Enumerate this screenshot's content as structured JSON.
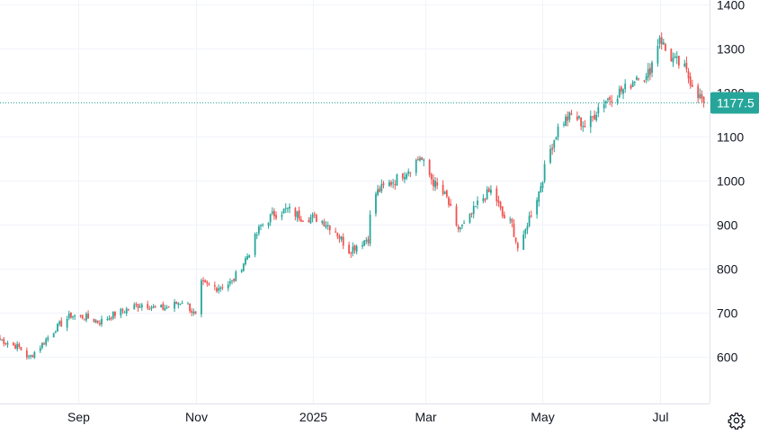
{
  "chart_data": {
    "type": "candlestick",
    "title": "",
    "xlabel": "",
    "ylabel": "",
    "ylim": [
      495,
      1410
    ],
    "y_ticks": [
      600,
      700,
      800,
      900,
      1000,
      1100,
      1200,
      1300,
      1400
    ],
    "y_tick_labels": [
      "600",
      "700",
      "800",
      "900",
      "1000",
      "1100",
      "1200",
      "1300",
      "1400"
    ],
    "x_ticks": [
      "2024-09-01",
      "2024-11-01",
      "2025-01-01",
      "2025-03-01",
      "2025-05-01",
      "2025-07-01"
    ],
    "x_tick_labels": [
      "Sep",
      "Nov",
      "2025",
      "Mar",
      "May",
      "Jul"
    ],
    "x_range": [
      "2024-07-22",
      "2025-07-27"
    ],
    "grid": true,
    "last_price": 1177.5,
    "last_price_label": "1177.5",
    "up_color": "#26a69a",
    "down_color": "#ef5350",
    "closes": [
      [
        "2024-07-22",
        640
      ],
      [
        "2024-08-01",
        622
      ],
      [
        "2024-08-06",
        598
      ],
      [
        "2024-08-12",
        625
      ],
      [
        "2024-08-20",
        665
      ],
      [
        "2024-08-28",
        695
      ],
      [
        "2024-09-05",
        690
      ],
      [
        "2024-09-12",
        680
      ],
      [
        "2024-09-20",
        698
      ],
      [
        "2024-09-28",
        712
      ],
      [
        "2024-10-05",
        722
      ],
      [
        "2024-10-12",
        708
      ],
      [
        "2024-10-19",
        715
      ],
      [
        "2024-10-26",
        730
      ],
      [
        "2024-11-01",
        692
      ],
      [
        "2024-11-04",
        765
      ],
      [
        "2024-11-12",
        758
      ],
      [
        "2024-11-20",
        770
      ],
      [
        "2024-11-28",
        830
      ],
      [
        "2024-12-05",
        898
      ],
      [
        "2024-12-12",
        925
      ],
      [
        "2024-12-19",
        935
      ],
      [
        "2024-12-26",
        918
      ],
      [
        "2025-01-04",
        915
      ],
      [
        "2025-01-12",
        892
      ],
      [
        "2025-01-20",
        842
      ],
      [
        "2025-01-26",
        860
      ],
      [
        "2025-01-30",
        870
      ],
      [
        "2025-02-01",
        965
      ],
      [
        "2025-02-07",
        985
      ],
      [
        "2025-02-14",
        1005
      ],
      [
        "2025-02-21",
        1030
      ],
      [
        "2025-02-26",
        1055
      ],
      [
        "2025-03-02",
        1020
      ],
      [
        "2025-03-06",
        990
      ],
      [
        "2025-03-12",
        960
      ],
      [
        "2025-03-17",
        890
      ],
      [
        "2025-03-22",
        900
      ],
      [
        "2025-03-29",
        955
      ],
      [
        "2025-04-05",
        980
      ],
      [
        "2025-04-10",
        920
      ],
      [
        "2025-04-15",
        900
      ],
      [
        "2025-04-19",
        830
      ],
      [
        "2025-04-23",
        905
      ],
      [
        "2025-04-29",
        975
      ],
      [
        "2025-05-04",
        1060
      ],
      [
        "2025-05-10",
        1130
      ],
      [
        "2025-05-17",
        1150
      ],
      [
        "2025-05-24",
        1120
      ],
      [
        "2025-05-31",
        1175
      ],
      [
        "2025-06-07",
        1195
      ],
      [
        "2025-06-14",
        1210
      ],
      [
        "2025-06-21",
        1250
      ],
      [
        "2025-06-24",
        1230
      ],
      [
        "2025-06-28",
        1280
      ],
      [
        "2025-07-01",
        1330
      ],
      [
        "2025-07-04",
        1295
      ],
      [
        "2025-07-09",
        1270
      ],
      [
        "2025-07-13",
        1260
      ],
      [
        "2025-07-16",
        1235
      ],
      [
        "2025-07-19",
        1215
      ],
      [
        "2025-07-22",
        1190
      ],
      [
        "2025-07-24",
        1177.5
      ]
    ]
  },
  "icons": {
    "settings": "gear-icon"
  }
}
